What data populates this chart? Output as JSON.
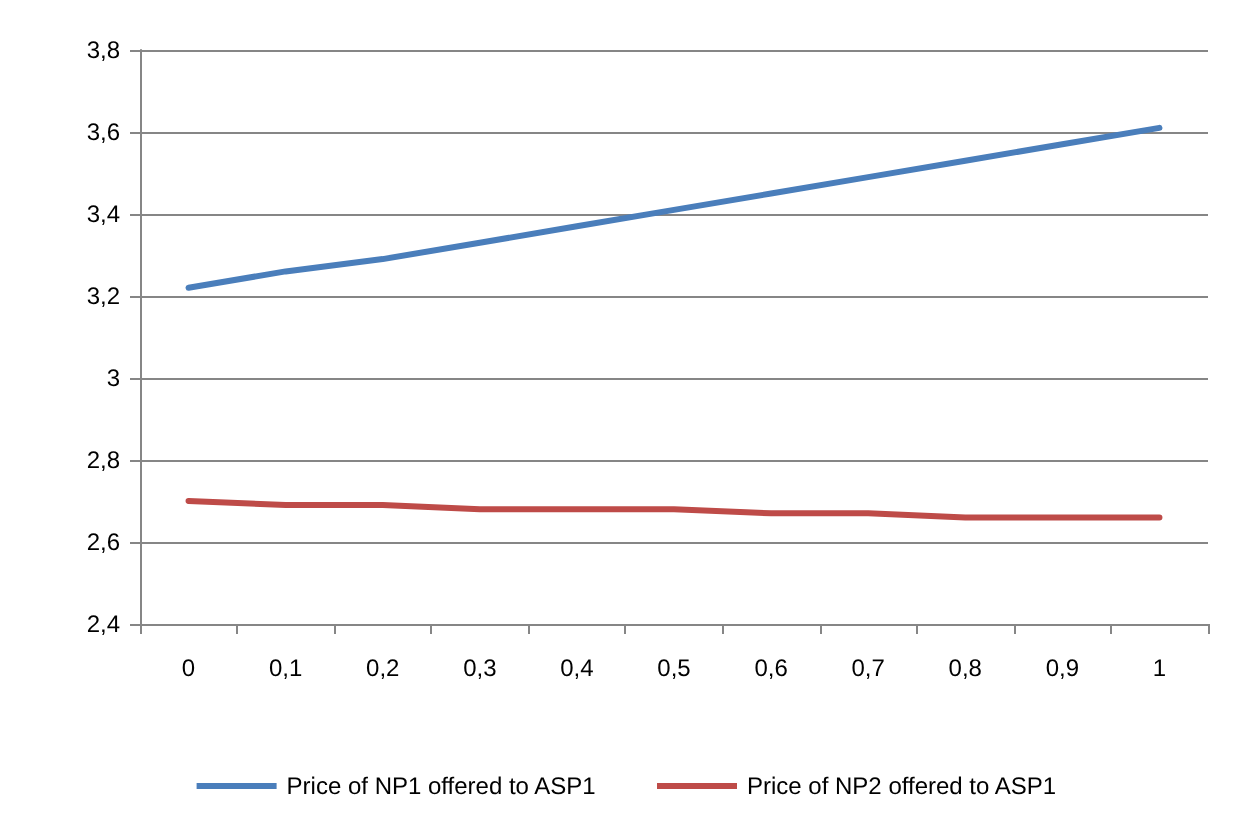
{
  "chart_data": {
    "type": "line",
    "categories": [
      "0",
      "0,1",
      "0,2",
      "0,3",
      "0,4",
      "0,5",
      "0,6",
      "0,7",
      "0,8",
      "0,9",
      "1"
    ],
    "series": [
      {
        "name": "Price of NP1 offered to ASP1",
        "color": "#4a7ebb",
        "values": [
          3.22,
          3.26,
          3.29,
          3.33,
          3.37,
          3.41,
          3.45,
          3.49,
          3.53,
          3.57,
          3.61
        ]
      },
      {
        "name": "Price of NP2 offered to ASP1",
        "color": "#be4b48",
        "values": [
          2.7,
          2.69,
          2.69,
          2.68,
          2.68,
          2.68,
          2.67,
          2.67,
          2.66,
          2.66,
          2.66
        ]
      }
    ],
    "ylim": [
      2.4,
      3.8
    ],
    "yticks": [
      {
        "value": 2.4,
        "label": "2,4"
      },
      {
        "value": 2.6,
        "label": "2,6"
      },
      {
        "value": 2.8,
        "label": "2,8"
      },
      3,
      {
        "value": 3.2,
        "label": "3,2"
      },
      {
        "value": 3.4,
        "label": "3,4"
      },
      {
        "value": 3.6,
        "label": "3,6"
      },
      {
        "value": 3.8,
        "label": "3,8"
      }
    ],
    "grid": "y",
    "legend": "bottom",
    "marker": "none",
    "line_style": "solid"
  }
}
